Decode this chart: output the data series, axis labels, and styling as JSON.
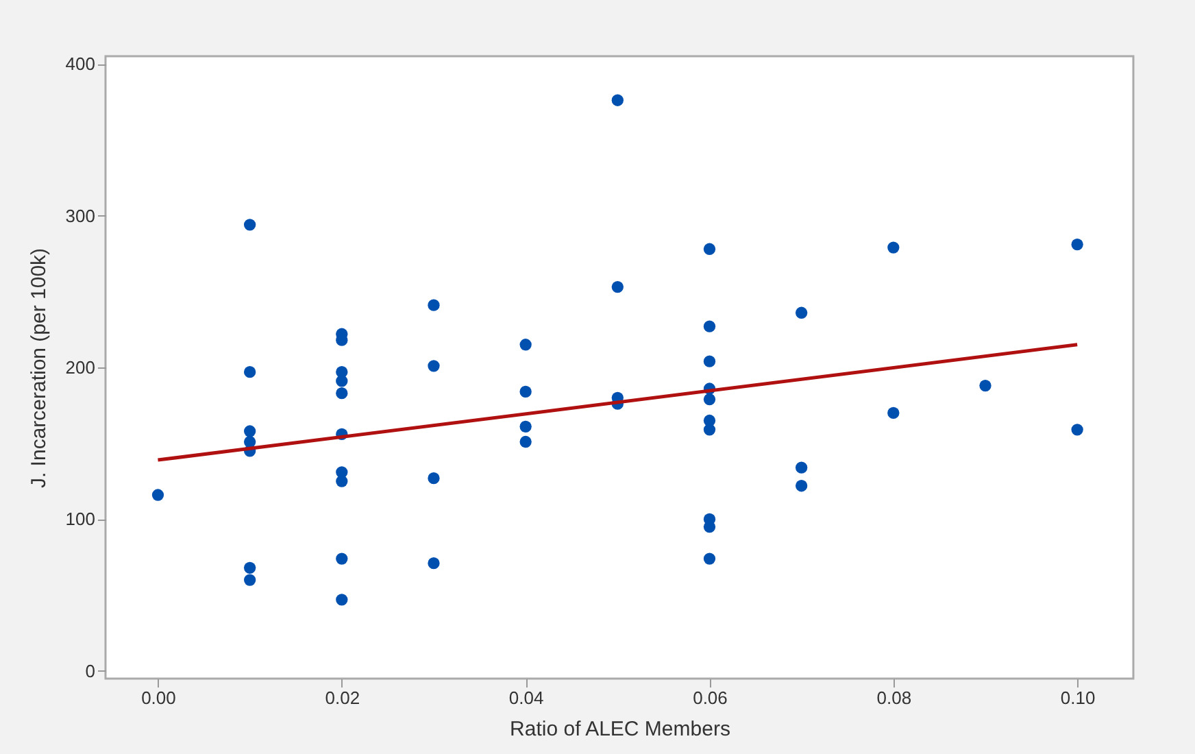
{
  "chart_data": {
    "type": "scatter",
    "xlabel": "Ratio of ALEC Members",
    "ylabel": "J. Incarceration (per 100k)",
    "x": [
      0,
      0.01,
      0.01,
      0.01,
      0.01,
      0.01,
      0.01,
      0.01,
      0.02,
      0.02,
      0.02,
      0.02,
      0.02,
      0.02,
      0.02,
      0.02,
      0.02,
      0.02,
      0.03,
      0.03,
      0.03,
      0.03,
      0.04,
      0.04,
      0.04,
      0.04,
      0.05,
      0.05,
      0.05,
      0.05,
      0.06,
      0.06,
      0.06,
      0.06,
      0.06,
      0.06,
      0.06,
      0.06,
      0.06,
      0.06,
      0.07,
      0.07,
      0.07,
      0.08,
      0.08,
      0.09,
      0.1,
      0.1
    ],
    "series": [
      {
        "color": "#0050b0",
        "marker": "circle",
        "values": [
          116,
          294,
          197,
          158,
          151,
          145,
          68,
          60,
          222,
          218,
          197,
          191,
          183,
          156,
          131,
          125,
          74,
          47,
          241,
          201,
          127,
          71,
          215,
          184,
          161,
          151,
          376,
          253,
          180,
          176,
          278,
          227,
          204,
          186,
          179,
          165,
          159,
          100,
          95,
          74,
          236,
          134,
          122,
          279,
          170,
          188,
          281,
          159
        ]
      },
      {
        "type": "line",
        "color": "#b01010",
        "marker": "none",
        "line_style": "solid",
        "x": [
          0,
          0.1
        ],
        "values": [
          139,
          215
        ]
      }
    ],
    "xlim": [
      -0.0057,
      0.1061
    ],
    "ylim": [
      -5,
      405
    ],
    "xticks": [
      {
        "value": 0,
        "label": "0.00"
      },
      {
        "value": 0.02,
        "label": "0.02"
      },
      {
        "value": 0.04,
        "label": "0.04"
      },
      {
        "value": 0.06,
        "label": "0.06"
      },
      {
        "value": 0.08,
        "label": "0.08"
      },
      {
        "value": 0.1,
        "label": "0.10"
      }
    ],
    "yticks": [
      0,
      100,
      200,
      300,
      400
    ],
    "grid": false
  }
}
